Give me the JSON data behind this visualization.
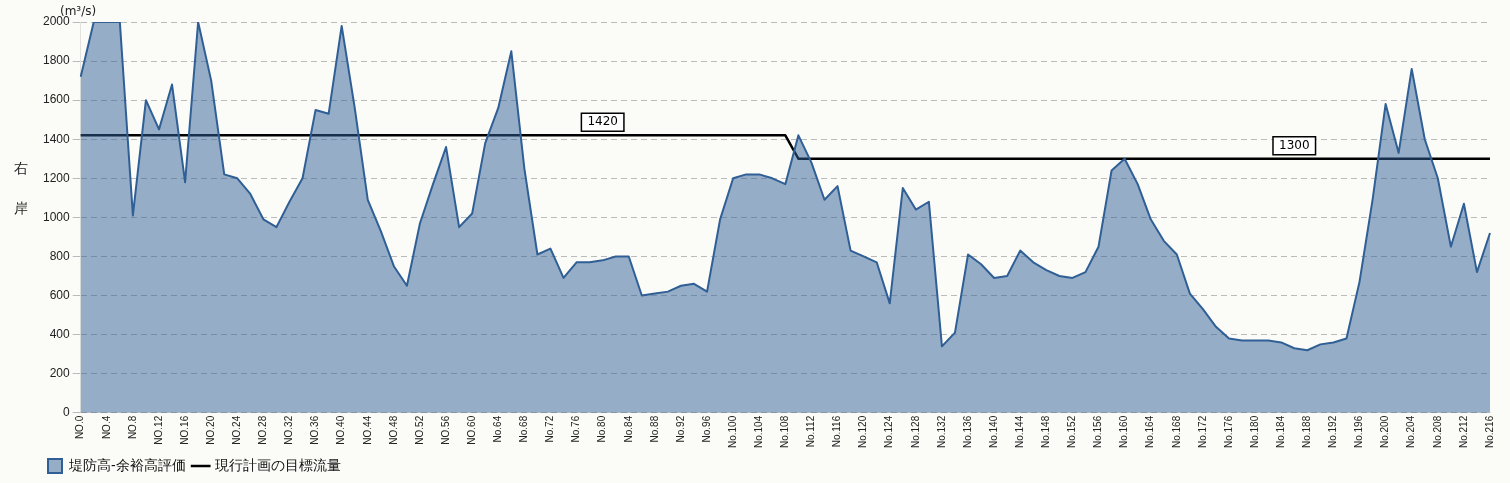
{
  "chart_data": {
    "type": "area",
    "ylabel": "右岸",
    "annotations": [
      "(m³/s)"
    ],
    "categories": [
      "NO.0",
      null,
      "NO.4",
      null,
      "NO.8",
      null,
      "NO.12",
      null,
      "NO.16",
      null,
      "NO.20",
      null,
      "NO.24",
      null,
      "NO.28",
      null,
      "NO.32",
      null,
      "NO.36",
      null,
      "NO.40",
      null,
      "NO.44",
      null,
      "NO.48",
      null,
      "NO.52",
      null,
      "NO.56",
      null,
      "NO.60",
      null,
      "No.64",
      null,
      "No.68",
      null,
      "No.72",
      null,
      "No.76",
      null,
      "No.80",
      null,
      "No.84",
      null,
      "No.88",
      null,
      "No.92",
      null,
      "No.96",
      null,
      "No.100",
      null,
      "No.104",
      null,
      "No.108",
      null,
      "No.112",
      null,
      "No.116",
      null,
      "No.120",
      null,
      "No.124",
      null,
      "No.128",
      null,
      "No.132",
      null,
      "No.136",
      null,
      "No.140",
      null,
      "No.144",
      null,
      "No.148",
      null,
      "No.152",
      null,
      "No.156",
      null,
      "No.160",
      null,
      "No.164",
      null,
      "No.168",
      null,
      "No.172",
      null,
      "No.176",
      null,
      "No.180",
      null,
      "No.184",
      null,
      "No.188",
      null,
      "No.192",
      null,
      "No.196",
      null,
      "No.200",
      null,
      "No.204",
      null,
      "No.208",
      null,
      "No.212",
      null,
      "No.216"
    ],
    "series": [
      {
        "name": "堤防高-余裕高評価",
        "color": "#2f5f95",
        "values": [
          1720,
          2000,
          2000,
          2000,
          1010,
          1600,
          1450,
          1680,
          1180,
          2000,
          1700,
          1220,
          1200,
          1120,
          990,
          950,
          1080,
          1200,
          1550,
          1530,
          1980,
          1560,
          1090,
          930,
          750,
          650,
          970,
          1170,
          1360,
          950,
          1020,
          1380,
          1560,
          1850,
          1250,
          810,
          840,
          690,
          770,
          770,
          780,
          800,
          800,
          600,
          610,
          620,
          650,
          660,
          620,
          990,
          1200,
          1220,
          1220,
          1200,
          1170,
          1420,
          1280,
          1090,
          1160,
          830,
          800,
          770,
          560,
          1150,
          1040,
          1080,
          340,
          410,
          810,
          760,
          690,
          700,
          830,
          770,
          730,
          700,
          690,
          720,
          850,
          1240,
          1300,
          1170,
          990,
          880,
          810,
          610,
          530,
          440,
          380,
          370,
          370,
          370,
          360,
          330,
          320,
          350,
          360,
          380,
          670,
          1090,
          1580,
          1330,
          1760,
          1400,
          1200,
          850,
          1070,
          720,
          920
        ]
      },
      {
        "name": "現行計画の目標流量",
        "type": "line",
        "color": "#000000",
        "values": [
          1420,
          1420,
          1420,
          1420,
          1420,
          1420,
          1420,
          1420,
          1420,
          1420,
          1420,
          1420,
          1420,
          1420,
          1420,
          1420,
          1420,
          1420,
          1420,
          1420,
          1420,
          1420,
          1420,
          1420,
          1420,
          1420,
          1420,
          1420,
          1420,
          1420,
          1420,
          1420,
          1420,
          1420,
          1420,
          1420,
          1420,
          1420,
          1420,
          1420,
          1420,
          1420,
          1420,
          1420,
          1420,
          1420,
          1420,
          1420,
          1420,
          1420,
          1420,
          1420,
          1420,
          1420,
          1420,
          1300,
          1300,
          1300,
          1300,
          1300,
          1300,
          1300,
          1300,
          1300,
          1300,
          1300,
          1300,
          1300,
          1300,
          1300,
          1300,
          1300,
          1300,
          1300,
          1300,
          1300,
          1300,
          1300,
          1300,
          1300,
          1300,
          1300,
          1300,
          1300,
          1300,
          1300,
          1300,
          1300,
          1300,
          1300,
          1300,
          1300,
          1300,
          1300,
          1300,
          1300,
          1300,
          1300,
          1300,
          1300,
          1300,
          1300,
          1300,
          1300,
          1300,
          1300,
          1300,
          1300,
          1300
        ],
        "value_labels": [
          null,
          null,
          null,
          null,
          null,
          null,
          null,
          null,
          null,
          null,
          null,
          null,
          null,
          null,
          null,
          null,
          null,
          null,
          null,
          null,
          null,
          null,
          null,
          null,
          null,
          null,
          null,
          null,
          null,
          null,
          null,
          null,
          null,
          null,
          null,
          null,
          null,
          null,
          null,
          null,
          "1420",
          null,
          null,
          null,
          null,
          null,
          null,
          null,
          null,
          null,
          null,
          null,
          null,
          null,
          null,
          null,
          null,
          null,
          null,
          null,
          null,
          null,
          null,
          null,
          null,
          null,
          null,
          null,
          null,
          null,
          null,
          null,
          null,
          null,
          null,
          null,
          null,
          null,
          null,
          null,
          null,
          null,
          null,
          null,
          null,
          null,
          null,
          null,
          null,
          null,
          null,
          null,
          null,
          "1300",
          null,
          null,
          null,
          null,
          null,
          null,
          null,
          null,
          null,
          null,
          null,
          null,
          null,
          null,
          null
        ]
      }
    ],
    "ylim": [
      0,
      2000
    ],
    "yticks": [
      0,
      200,
      400,
      600,
      800,
      1000,
      1200,
      1400,
      1600,
      1800,
      2000
    ],
    "grid": "y",
    "legend": "bottom left"
  }
}
